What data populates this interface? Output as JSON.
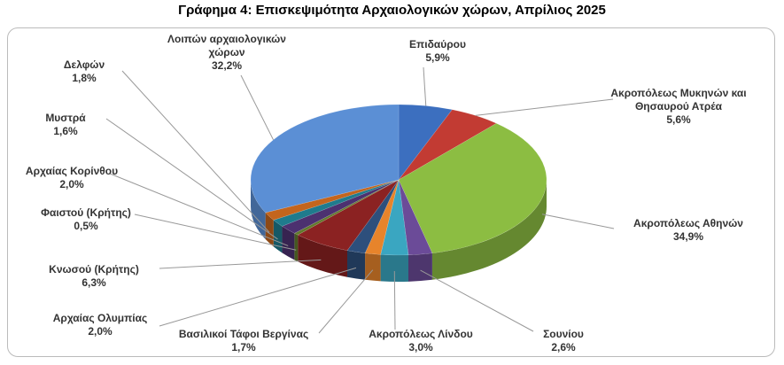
{
  "chart_data": {
    "type": "pie3d",
    "title": "Γράφημα 4: Επισκεψιμότητα Αρχαιολογικών χώρων, Απρίλιος 2025",
    "categories": [
      "Επιδαύρου",
      "Ακροπόλεως Μυκηνών και Θησαυρού Ατρέα",
      "Ακροπόλεως Αθηνών",
      "Σουνίου",
      "Ακροπόλεως Λίνδου",
      "Βασιλικοί Τάφοι Βεργίνας",
      "Αρχαίας Ολυμπίας",
      "Κνωσού (Κρήτης)",
      "Φαιστού (Κρήτης)",
      "Αρχαίας Κορίνθου",
      "Μυστρά",
      "Δελφών",
      "Λοιπών αρχαιολογικών χώρων"
    ],
    "values": [
      5.9,
      5.6,
      34.9,
      2.6,
      3.0,
      1.7,
      2.0,
      6.3,
      0.5,
      2.0,
      1.6,
      1.8,
      32.2
    ],
    "value_labels": [
      "5,9%",
      "5,6%",
      "34,9%",
      "2,6%",
      "3,0%",
      "1,7%",
      "2,0%",
      "6,3%",
      "0,5%",
      "2,0%",
      "1,6%",
      "1,8%",
      "32,2%"
    ],
    "colors": [
      "#3c6fbf",
      "#c23b33",
      "#8cbd42",
      "#6b4b98",
      "#3aa6c1",
      "#e7842b",
      "#2d4f7c",
      "#8b2222",
      "#617a2c",
      "#4c3170",
      "#1f7b8d",
      "#c4651d",
      "#5b8fd5"
    ]
  }
}
